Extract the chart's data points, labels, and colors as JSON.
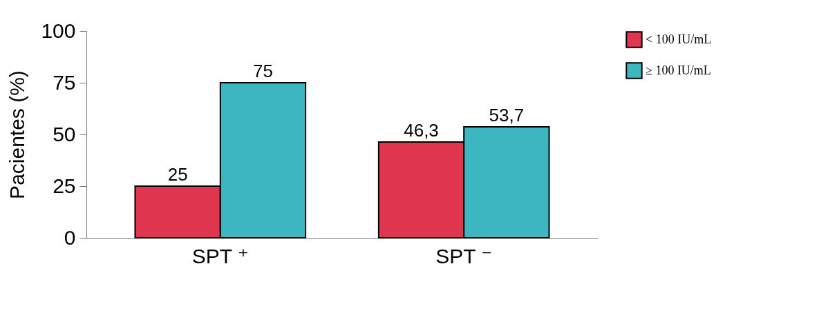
{
  "chart_data": {
    "type": "bar",
    "ylabel": "Pacientes (%)",
    "categories": [
      "SPT ⁺",
      "SPT ⁻"
    ],
    "series": [
      {
        "name": "< 100 IU/mL",
        "color": "#e0364f",
        "values": [
          25,
          46.3
        ],
        "value_labels": [
          "25",
          "46,3"
        ]
      },
      {
        "name": "≥ 100 IU/mL",
        "color": "#3cb6bf",
        "values": [
          75,
          53.7
        ],
        "value_labels": [
          "75",
          "53,7"
        ]
      }
    ],
    "ylim": [
      0,
      100
    ],
    "yticks": [
      0,
      25,
      50,
      75,
      100
    ],
    "grid": false,
    "legend": "top right"
  }
}
